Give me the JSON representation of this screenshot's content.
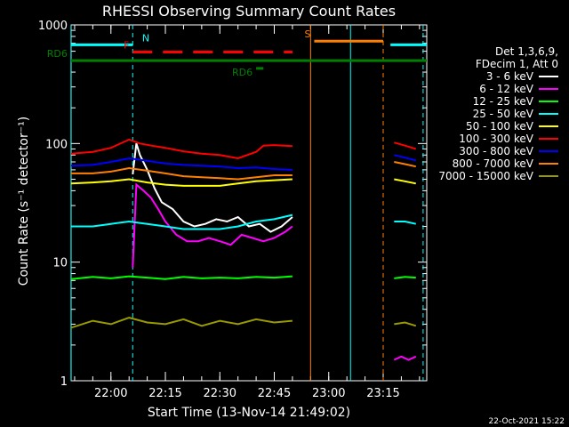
{
  "chart_data": {
    "type": "line",
    "title": "RHESSI Observing Summary Count Rates",
    "xlabel": "Start Time (13-Nov-14 21:49:02)",
    "ylabel": "Count Rate (s⁻¹ detector⁻¹)",
    "yscale": "log",
    "ylim": [
      1,
      1000
    ],
    "xlim": [
      "21:49:02",
      "23:27:00"
    ],
    "x_ticks": [
      "22:00",
      "22:15",
      "22:30",
      "22:45",
      "23:00",
      "23:15"
    ],
    "y_ticks": [
      "1",
      "10",
      "100",
      "1000"
    ],
    "legend_header": [
      "Det 1,3,6,9,",
      "FDecim 1, Att 0"
    ],
    "legend_position": "right",
    "footer_date": "22-Oct-2021 15:22",
    "series": [
      {
        "name": "3 - 6 keV",
        "color": "#ffffff",
        "segments": [
          {
            "x": [
              "22:06",
              "22:07",
              "22:08",
              "22:10",
              "22:12",
              "22:14",
              "22:17",
              "22:20",
              "22:23",
              "22:26",
              "22:29",
              "22:32",
              "22:35",
              "22:38",
              "22:41",
              "22:44",
              "22:47",
              "22:50"
            ],
            "y": [
              55,
              100,
              80,
              60,
              42,
              32,
              28,
              22,
              20,
              21,
              23,
              22,
              24,
              20,
              21,
              18,
              20,
              24
            ]
          }
        ]
      },
      {
        "name": "6 - 12 keV",
        "color": "#ff00ff",
        "segments": [
          {
            "x": [
              "22:06",
              "22:07",
              "22:09",
              "22:11",
              "22:13",
              "22:15",
              "22:18",
              "22:21",
              "22:24",
              "22:27",
              "22:30",
              "22:33",
              "22:36",
              "22:39",
              "22:42",
              "22:45",
              "22:48",
              "22:50"
            ],
            "y": [
              9,
              45,
              40,
              35,
              28,
              22,
              17,
              15,
              15,
              16,
              15,
              14,
              17,
              16,
              15,
              16,
              18,
              20
            ]
          },
          {
            "x": [
              "23:18",
              "23:20",
              "23:22",
              "23:24"
            ],
            "y": [
              1.5,
              1.6,
              1.5,
              1.6
            ]
          }
        ]
      },
      {
        "name": "12 - 25 keV",
        "color": "#00ff00",
        "segments": [
          {
            "x": [
              "21:49",
              "21:55",
              "22:00",
              "22:05",
              "22:10",
              "22:15",
              "22:20",
              "22:25",
              "22:30",
              "22:35",
              "22:40",
              "22:45",
              "22:50"
            ],
            "y": [
              7.2,
              7.5,
              7.3,
              7.6,
              7.4,
              7.2,
              7.5,
              7.3,
              7.4,
              7.3,
              7.5,
              7.4,
              7.6
            ]
          },
          {
            "x": [
              "23:18",
              "23:21",
              "23:24"
            ],
            "y": [
              7.3,
              7.5,
              7.4
            ]
          }
        ]
      },
      {
        "name": "25 - 50 keV",
        "color": "#00ffff",
        "segments": [
          {
            "x": [
              "21:49",
              "21:55",
              "22:00",
              "22:05",
              "22:10",
              "22:15",
              "22:20",
              "22:25",
              "22:30",
              "22:35",
              "22:40",
              "22:45",
              "22:50"
            ],
            "y": [
              20,
              20,
              21,
              22,
              21,
              20,
              19,
              19,
              19,
              20,
              22,
              23,
              25
            ]
          },
          {
            "x": [
              "23:18",
              "23:21",
              "23:24"
            ],
            "y": [
              22,
              22,
              21
            ]
          }
        ]
      },
      {
        "name": "50 - 100 keV",
        "color": "#ffff00",
        "segments": [
          {
            "x": [
              "21:49",
              "21:55",
              "22:00",
              "22:05",
              "22:10",
              "22:15",
              "22:20",
              "22:25",
              "22:30",
              "22:35",
              "22:40",
              "22:45",
              "22:50"
            ],
            "y": [
              46,
              47,
              48,
              50,
              47,
              45,
              44,
              44,
              44,
              46,
              48,
              49,
              50
            ]
          },
          {
            "x": [
              "23:18",
              "23:21",
              "23:24"
            ],
            "y": [
              50,
              48,
              46
            ]
          }
        ]
      },
      {
        "name": "100 - 300 keV",
        "color": "#ff0000",
        "segments": [
          {
            "x": [
              "21:49",
              "21:55",
              "22:00",
              "22:05",
              "22:08",
              "22:12",
              "22:15",
              "22:20",
              "22:25",
              "22:30",
              "22:35",
              "22:40",
              "22:42",
              "22:45",
              "22:50"
            ],
            "y": [
              82,
              85,
              92,
              108,
              100,
              95,
              92,
              86,
              82,
              80,
              75,
              85,
              96,
              97,
              95
            ]
          },
          {
            "x": [
              "23:18",
              "23:21",
              "23:24"
            ],
            "y": [
              102,
              96,
              90
            ]
          }
        ]
      },
      {
        "name": "300 - 800 keV",
        "color": "#0000ff",
        "segments": [
          {
            "x": [
              "21:49",
              "21:55",
              "22:00",
              "22:05",
              "22:08",
              "22:12",
              "22:15",
              "22:20",
              "22:25",
              "22:30",
              "22:35",
              "22:40",
              "22:42",
              "22:45",
              "22:50"
            ],
            "y": [
              65,
              66,
              70,
              75,
              73,
              70,
              68,
              66,
              65,
              64,
              62,
              63,
              62,
              61,
              60
            ]
          },
          {
            "x": [
              "23:18",
              "23:21",
              "23:24"
            ],
            "y": [
              80,
              76,
              72
            ]
          }
        ]
      },
      {
        "name": "800 - 7000 keV",
        "color": "#ff8000",
        "segments": [
          {
            "x": [
              "21:49",
              "21:55",
              "22:00",
              "22:05",
              "22:10",
              "22:15",
              "22:20",
              "22:25",
              "22:30",
              "22:35",
              "22:40",
              "22:45",
              "22:50"
            ],
            "y": [
              56,
              56,
              58,
              62,
              59,
              56,
              53,
              52,
              51,
              50,
              52,
              54,
              54
            ]
          },
          {
            "x": [
              "23:18",
              "23:21",
              "23:24"
            ],
            "y": [
              70,
              67,
              64
            ]
          }
        ]
      },
      {
        "name": "7000 - 15000 keV",
        "color": "#999900",
        "segments": [
          {
            "x": [
              "21:49",
              "21:55",
              "22:00",
              "22:05",
              "22:10",
              "22:15",
              "22:20",
              "22:25",
              "22:30",
              "22:35",
              "22:40",
              "22:45",
              "22:50"
            ],
            "y": [
              2.8,
              3.2,
              3.0,
              3.4,
              3.1,
              3.0,
              3.3,
              2.9,
              3.2,
              3.0,
              3.3,
              3.1,
              3.2
            ]
          },
          {
            "x": [
              "23:18",
              "23:21",
              "23:24"
            ],
            "y": [
              3.0,
              3.1,
              2.9
            ]
          }
        ]
      }
    ],
    "flags": [
      {
        "label": "N",
        "color": "#00ffff",
        "y": 680,
        "style": "solid",
        "segments": [
          [
            "21:49",
            "22:06"
          ],
          [
            "23:17",
            "23:27"
          ]
        ]
      },
      {
        "label": "F",
        "color": "#ff0000",
        "y": 590,
        "style": "dashed",
        "segments": [
          [
            "22:06",
            "22:50"
          ]
        ]
      },
      {
        "label": "S",
        "color": "#ff8000",
        "y": 730,
        "style": "solid",
        "segments": [
          [
            "22:56",
            "23:15"
          ]
        ]
      },
      {
        "label": "RD6",
        "color": "#008000",
        "y": 500,
        "style": "solid",
        "segments": [
          [
            "21:49",
            "23:27"
          ]
        ]
      },
      {
        "label": "RD6",
        "color": "#008000",
        "y": 430,
        "style": "solid",
        "segments": [
          [
            "22:40",
            "22:42"
          ]
        ]
      }
    ],
    "markers": [
      {
        "x": "22:06",
        "color": "#00ffff",
        "style": "dashed"
      },
      {
        "x": "22:55",
        "color": "#ff8000",
        "style": "solid"
      },
      {
        "x": "23:06",
        "color": "#00ffff",
        "style": "solid"
      },
      {
        "x": "23:15",
        "color": "#ff8000",
        "style": "dashed"
      },
      {
        "x": "23:26",
        "color": "#00ffff",
        "style": "dashed"
      },
      {
        "x": "21:49",
        "color": "#00ffff",
        "style": "solid"
      }
    ]
  }
}
